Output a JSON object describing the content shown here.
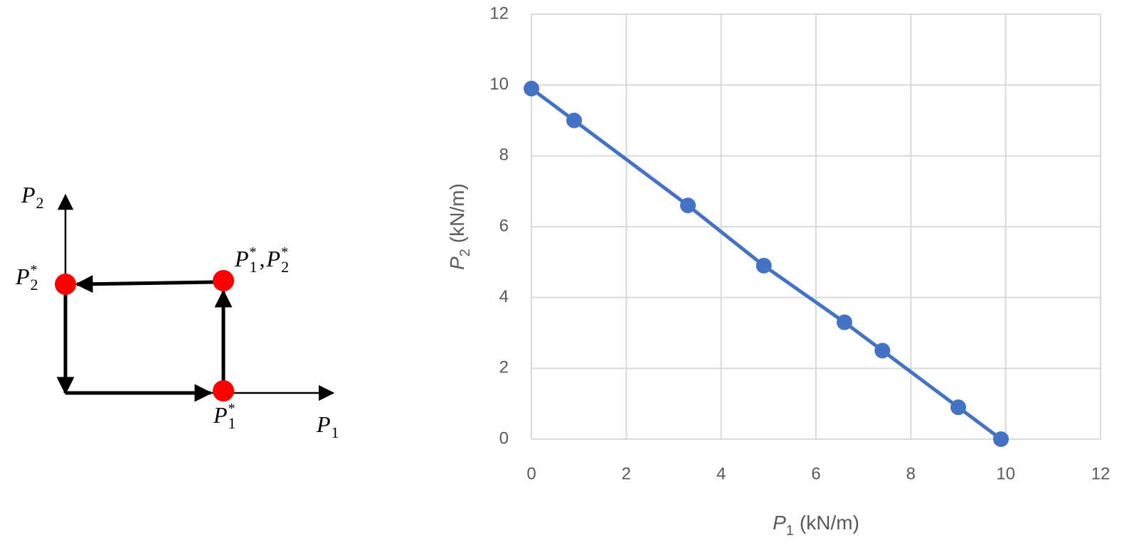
{
  "diagram": {
    "labels": [
      {
        "symbols": [
          {
            "base": "P",
            "sub": "2"
          }
        ]
      },
      {
        "symbols": [
          {
            "base": "P",
            "sub": "2",
            "sup": "*"
          }
        ]
      },
      {
        "symbols": [
          {
            "base": "P",
            "sub": "1",
            "sup": "*"
          },
          {
            "base": "P",
            "sub": "2",
            "sup": "*"
          }
        ],
        "separator": ","
      },
      {
        "symbols": [
          {
            "base": "P",
            "sub": "1",
            "sup": "*"
          }
        ]
      },
      {
        "symbols": [
          {
            "base": "P",
            "sub": "1"
          }
        ]
      }
    ]
  },
  "chart_data": {
    "type": "line",
    "xlabel": {
      "base": "P",
      "sub": "1",
      "unit": "(kN/m)"
    },
    "ylabel": {
      "base": "P",
      "sub": "2",
      "unit": "(kN/m)"
    },
    "x": [
      0,
      0.9,
      3.3,
      4.9,
      6.6,
      7.4,
      9.0,
      9.9
    ],
    "series": [
      {
        "color": "#4472c4",
        "values": [
          9.9,
          9.0,
          6.6,
          4.9,
          3.3,
          2.5,
          0.9,
          0
        ]
      }
    ],
    "xlim": [
      0,
      12
    ],
    "xticks": [
      0,
      2,
      4,
      6,
      8,
      10,
      12
    ],
    "ylim": [
      0,
      12
    ],
    "yticks": [
      0,
      2,
      4,
      6,
      8,
      10,
      12
    ],
    "grid": true
  }
}
